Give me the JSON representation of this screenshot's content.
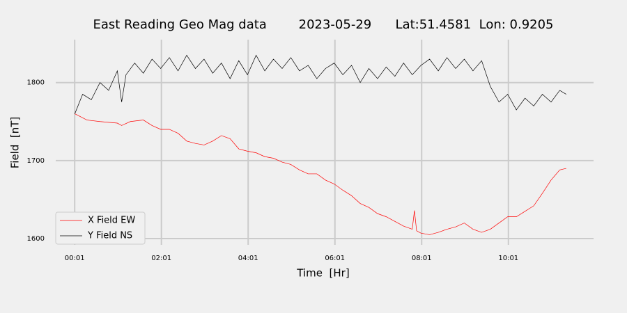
{
  "chart_data": {
    "type": "line",
    "title": "East Reading Geo Mag data        2023-05-29      Lat:51.4581  Lon: 0.9205",
    "xlabel": "Time  [Hr]",
    "ylabel": "Field  [nT]",
    "xlim": [
      -0.42,
      11.98
    ],
    "ylim": [
      1592,
      1855
    ],
    "xticks": [
      {
        "value": 0.0167,
        "label": "00:01"
      },
      {
        "value": 2.0167,
        "label": "02:01"
      },
      {
        "value": 4.0167,
        "label": "04:01"
      },
      {
        "value": 6.0167,
        "label": "06:01"
      },
      {
        "value": 8.0167,
        "label": "08:01"
      },
      {
        "value": 10.0167,
        "label": "10:01"
      }
    ],
    "yticks": [
      1600,
      1700,
      1800
    ],
    "grid": true,
    "legend": "lower left",
    "series": [
      {
        "name": "X Field EW",
        "color": "#ff0000",
        "x": [
          0.02,
          0.3,
          0.6,
          1.0,
          1.1,
          1.3,
          1.6,
          1.8,
          2.0,
          2.2,
          2.4,
          2.6,
          2.8,
          3.0,
          3.2,
          3.4,
          3.6,
          3.8,
          4.0,
          4.2,
          4.4,
          4.6,
          4.8,
          5.0,
          5.2,
          5.4,
          5.6,
          5.8,
          6.0,
          6.2,
          6.4,
          6.6,
          6.8,
          7.0,
          7.2,
          7.4,
          7.6,
          7.8,
          7.85,
          7.9,
          8.0,
          8.2,
          8.4,
          8.6,
          8.8,
          9.0,
          9.2,
          9.4,
          9.6,
          9.8,
          10.0,
          10.2,
          10.4,
          10.6,
          10.8,
          11.0,
          11.2,
          11.35
        ],
        "values": [
          1760,
          1752,
          1750,
          1748,
          1745,
          1750,
          1752,
          1745,
          1740,
          1740,
          1735,
          1725,
          1722,
          1720,
          1725,
          1732,
          1728,
          1715,
          1712,
          1710,
          1705,
          1703,
          1698,
          1695,
          1688,
          1683,
          1683,
          1675,
          1670,
          1662,
          1655,
          1645,
          1640,
          1632,
          1628,
          1622,
          1616,
          1612,
          1636,
          1610,
          1607,
          1605,
          1608,
          1612,
          1615,
          1620,
          1612,
          1608,
          1612,
          1620,
          1628,
          1628,
          1635,
          1642,
          1658,
          1675,
          1688,
          1690
        ]
      },
      {
        "name": "Y Field NS",
        "color": "#000000",
        "x": [
          0.02,
          0.2,
          0.4,
          0.6,
          0.8,
          1.0,
          1.1,
          1.2,
          1.4,
          1.6,
          1.8,
          2.0,
          2.2,
          2.4,
          2.6,
          2.8,
          3.0,
          3.2,
          3.4,
          3.6,
          3.8,
          4.0,
          4.2,
          4.4,
          4.6,
          4.8,
          5.0,
          5.2,
          5.4,
          5.6,
          5.8,
          6.0,
          6.2,
          6.4,
          6.6,
          6.8,
          7.0,
          7.2,
          7.4,
          7.6,
          7.8,
          8.0,
          8.2,
          8.4,
          8.6,
          8.8,
          9.0,
          9.2,
          9.4,
          9.6,
          9.8,
          10.0,
          10.2,
          10.4,
          10.6,
          10.8,
          11.0,
          11.2,
          11.35
        ],
        "values": [
          1760,
          1785,
          1778,
          1800,
          1790,
          1815,
          1775,
          1810,
          1825,
          1812,
          1830,
          1818,
          1832,
          1815,
          1835,
          1818,
          1830,
          1812,
          1825,
          1805,
          1828,
          1810,
          1835,
          1815,
          1830,
          1818,
          1832,
          1815,
          1822,
          1805,
          1818,
          1825,
          1810,
          1822,
          1800,
          1818,
          1805,
          1820,
          1808,
          1825,
          1810,
          1822,
          1830,
          1815,
          1832,
          1818,
          1830,
          1815,
          1828,
          1795,
          1775,
          1785,
          1765,
          1780,
          1770,
          1785,
          1775,
          1790,
          1785
        ]
      }
    ]
  }
}
